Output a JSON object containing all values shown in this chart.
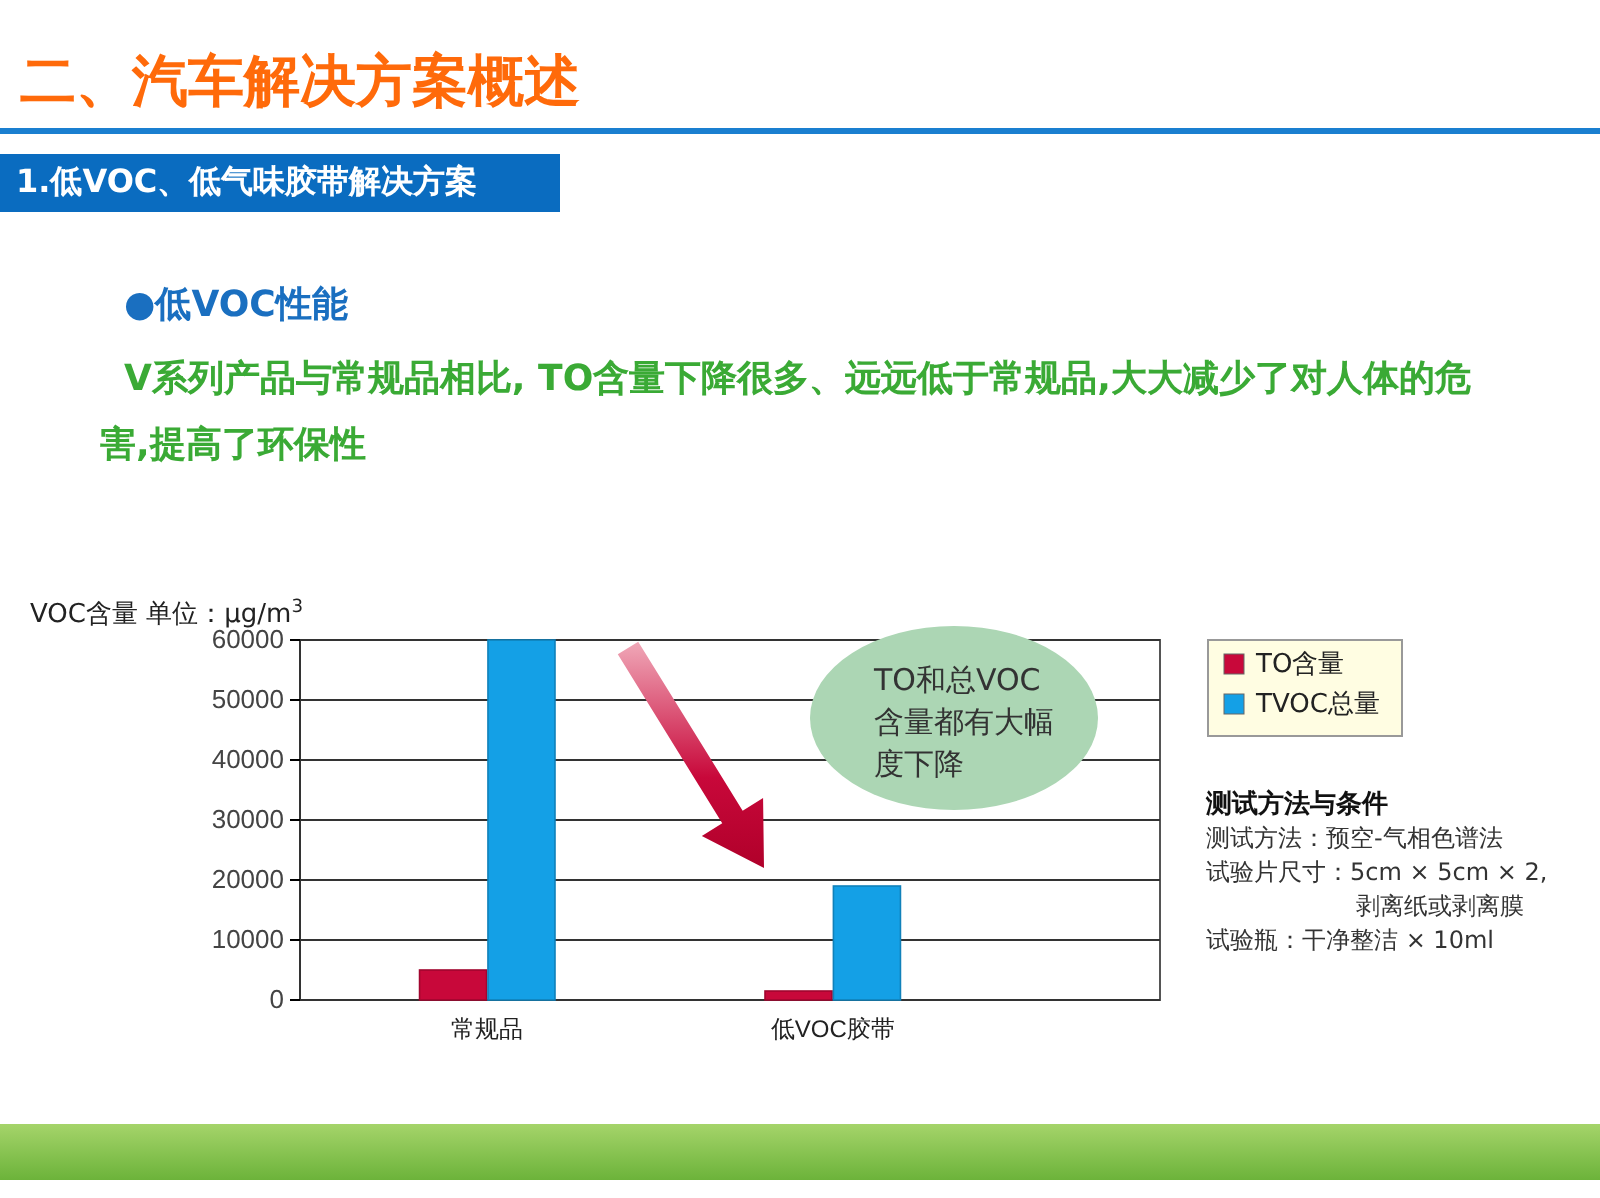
{
  "chart_data": {
    "type": "bar",
    "title": "二、汽车解决方案概述",
    "subtitle": "1.低VOC、低气味胶带解决方案",
    "ylabel": "VOC含量  单位：μg/m$^{3}$",
    "categories": [
      "常规品",
      "低VOC胶带"
    ],
    "series": [
      {
        "name": "TO含量",
        "color": "#c8083a",
        "values": [
          5000,
          1500
        ]
      },
      {
        "name": "TVOC总量",
        "color": "#14a0e6",
        "values": [
          60000,
          19000
        ]
      }
    ],
    "ylim": [
      0,
      60000
    ],
    "yticks": [
      0,
      10000,
      20000,
      30000,
      40000,
      50000,
      60000
    ],
    "grid": "y",
    "legend": "right",
    "annotations": [
      "●低VOC性能",
      "V系列产品与常规品相比, TO含量下降很多、远远低于常规品,大大减少了对人体的危害,提高了环保性",
      "TO和总VOC含量都有大幅度下降",
      "测试方法与条件",
      "测试方法：预空-气相色谱法",
      "试验片尺寸：5cm × 5cm × 2,",
      "剥离纸或剥离膜",
      "试验瓶：干净整洁 × 10ml"
    ]
  }
}
